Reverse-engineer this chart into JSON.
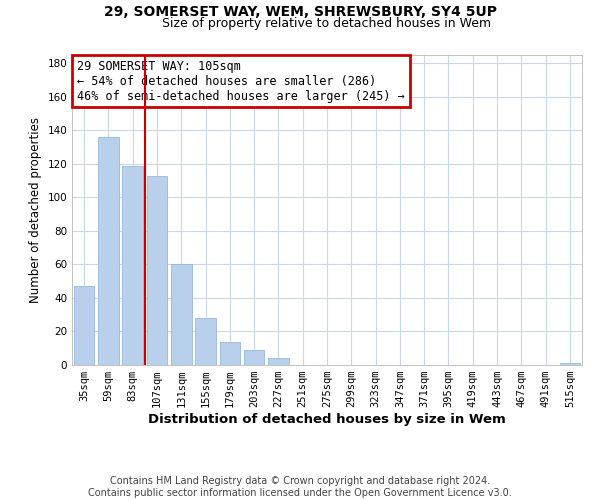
{
  "title": "29, SOMERSET WAY, WEM, SHREWSBURY, SY4 5UP",
  "subtitle": "Size of property relative to detached houses in Wem",
  "xlabel": "Distribution of detached houses by size in Wem",
  "ylabel": "Number of detached properties",
  "footnote1": "Contains HM Land Registry data © Crown copyright and database right 2024.",
  "footnote2": "Contains public sector information licensed under the Open Government Licence v3.0.",
  "annotation_line1": "29 SOMERSET WAY: 105sqm",
  "annotation_line2": "← 54% of detached houses are smaller (286)",
  "annotation_line3": "46% of semi-detached houses are larger (245) →",
  "categories": [
    "35sqm",
    "59sqm",
    "83sqm",
    "107sqm",
    "131sqm",
    "155sqm",
    "179sqm",
    "203sqm",
    "227sqm",
    "251sqm",
    "275sqm",
    "299sqm",
    "323sqm",
    "347sqm",
    "371sqm",
    "395sqm",
    "419sqm",
    "443sqm",
    "467sqm",
    "491sqm",
    "515sqm"
  ],
  "values": [
    47,
    136,
    119,
    113,
    60,
    28,
    14,
    9,
    4,
    0,
    0,
    0,
    0,
    0,
    0,
    0,
    0,
    0,
    0,
    0,
    1
  ],
  "bar_color": "#b8d0eb",
  "bar_edge_color": "#8ab0d8",
  "vline_color": "#cc0000",
  "vline_x": 2.5,
  "annotation_box_color": "#cc0000",
  "grid_color": "#c8d8e8",
  "background_color": "#ffffff",
  "ylim": [
    0,
    185
  ],
  "yticks": [
    0,
    20,
    40,
    60,
    80,
    100,
    120,
    140,
    160,
    180
  ],
  "title_fontsize": 10,
  "subtitle_fontsize": 9,
  "xlabel_fontsize": 9.5,
  "ylabel_fontsize": 8.5,
  "tick_fontsize": 7.5,
  "annotation_fontsize": 8.5,
  "footnote_fontsize": 7
}
